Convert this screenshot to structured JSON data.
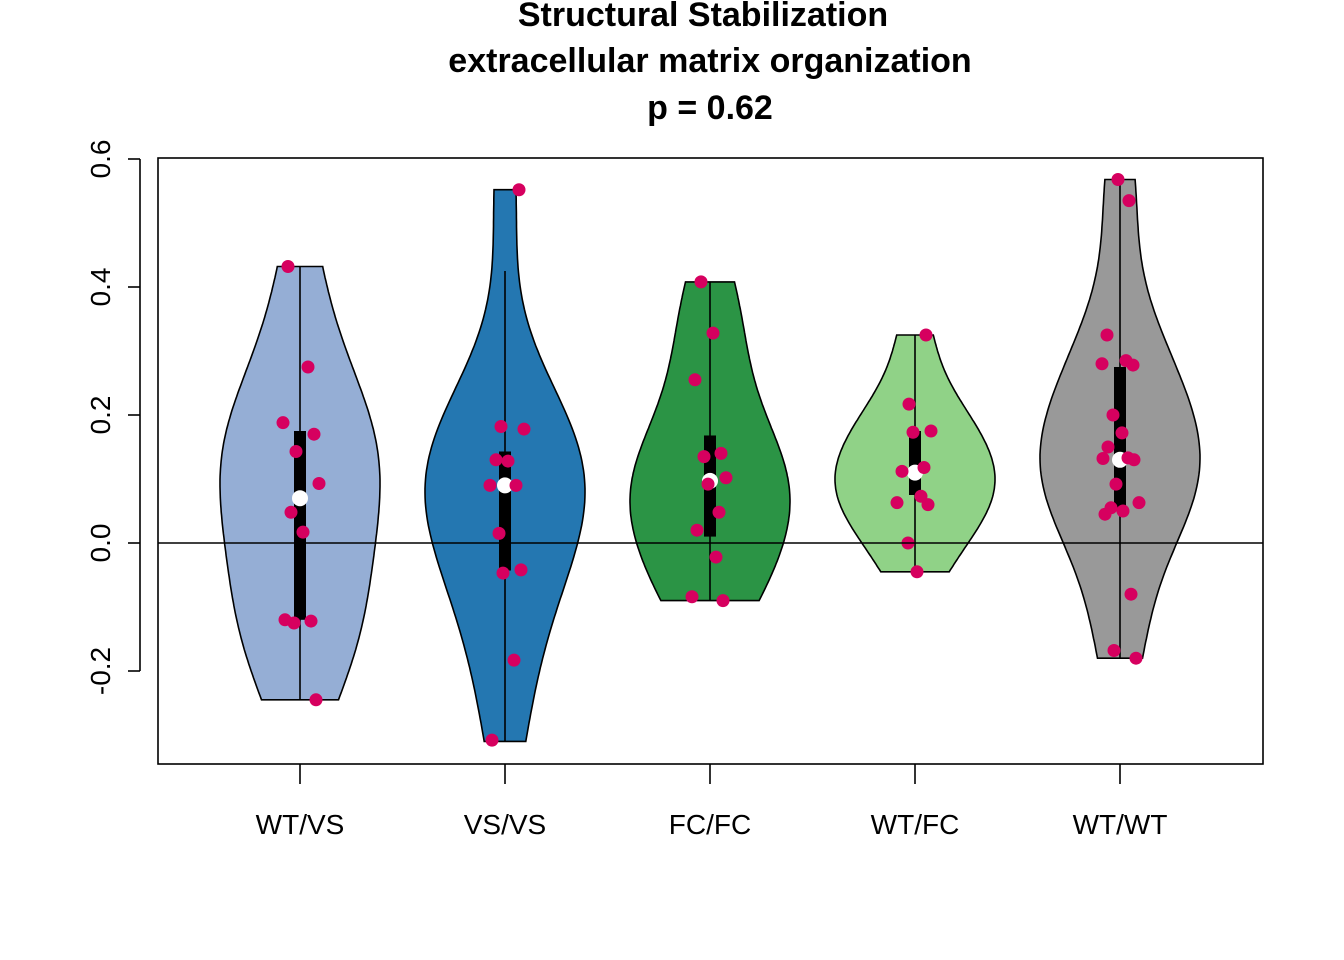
{
  "chart_data": {
    "type": "violin",
    "title_lines": [
      "Structural Stabilization",
      "extracellular matrix organization",
      "p = 0.62"
    ],
    "xlabel": "",
    "ylabel": "",
    "ylim": [
      -0.345,
      0.6
    ],
    "yticks": [
      -0.2,
      0.0,
      0.2,
      0.4,
      0.6
    ],
    "ytick_labels": [
      "-0.2",
      "0.0",
      "0.2",
      "0.4",
      "0.6"
    ],
    "reference_line_y": 0.0,
    "categories": [
      "WT/VS",
      "VS/VS",
      "FC/FC",
      "WT/FC",
      "WT/WT"
    ],
    "point_color": "#d6005f",
    "series": [
      {
        "name": "WT/VS",
        "fill": "#95aed5",
        "min": -0.245,
        "max": 0.432,
        "q1": -0.12,
        "q3": 0.175,
        "median": 0.07,
        "points": [
          0.432,
          0.275,
          0.188,
          0.17,
          0.143,
          0.093,
          0.048,
          0.017,
          -0.12,
          -0.122,
          -0.125,
          -0.245
        ]
      },
      {
        "name": "VS/VS",
        "fill": "#2477b1",
        "min": -0.31,
        "max": 0.552,
        "whisker_max": 0.425,
        "q1": -0.043,
        "q3": 0.143,
        "median": 0.09,
        "points": [
          0.552,
          0.182,
          0.178,
          0.13,
          0.128,
          0.09,
          0.09,
          0.015,
          -0.042,
          -0.047,
          -0.183,
          -0.308
        ]
      },
      {
        "name": "FC/FC",
        "fill": "#2b9445",
        "min": -0.09,
        "max": 0.408,
        "q1": 0.01,
        "q3": 0.168,
        "median": 0.097,
        "points": [
          0.408,
          0.328,
          0.255,
          0.14,
          0.135,
          0.102,
          0.092,
          0.048,
          0.02,
          -0.022,
          -0.084,
          -0.09
        ]
      },
      {
        "name": "WT/FC",
        "fill": "#90d287",
        "min": -0.045,
        "max": 0.325,
        "q1": 0.075,
        "q3": 0.175,
        "median": 0.11,
        "points": [
          0.325,
          0.217,
          0.175,
          0.173,
          0.118,
          0.112,
          0.073,
          0.063,
          0.06,
          0.0,
          -0.045
        ]
      },
      {
        "name": "WT/WT",
        "fill": "#999999",
        "min": -0.18,
        "max": 0.568,
        "q1": 0.055,
        "q3": 0.275,
        "median": 0.13,
        "points": [
          0.568,
          0.535,
          0.325,
          0.285,
          0.28,
          0.278,
          0.2,
          0.172,
          0.15,
          0.133,
          0.132,
          0.13,
          0.092,
          0.063,
          0.055,
          0.05,
          0.045,
          -0.08,
          -0.168,
          -0.18
        ]
      }
    ]
  }
}
